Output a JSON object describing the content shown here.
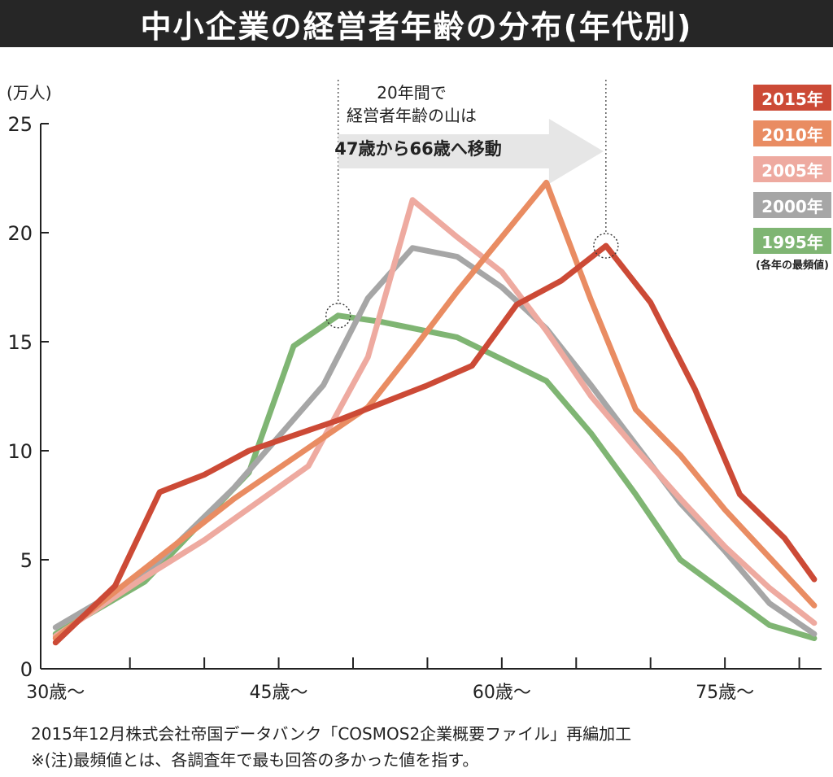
{
  "title": "中小企業の経営者年齢の分布(年代別)",
  "unit_label": "(万人)",
  "annotation": {
    "line1": "20年間で",
    "line2": "経営者年齢の山は",
    "arrow_text": "47歳から66歳へ移動"
  },
  "legend_note": "(各年の最頻値)",
  "source_line1": "2015年12月株式会社帝国データバンク「COSMOS2企業概要ファイル」再編加工",
  "source_line2": "※(注)最頻値とは、各調査年で最も回答の多かった値を指す。",
  "chart_data": {
    "type": "line",
    "x": [
      30,
      33,
      36,
      39,
      42,
      45,
      48,
      51,
      54,
      57,
      60,
      63,
      66,
      69,
      72,
      75,
      78,
      81
    ],
    "x_tick_labels": [
      "30歳〜",
      "45歳〜",
      "60歳〜",
      "75歳〜"
    ],
    "x_tick_values": [
      30,
      45,
      60,
      75
    ],
    "y_ticks": [
      0,
      5,
      10,
      15,
      20,
      25
    ],
    "ylim": [
      0,
      25
    ],
    "xlim": [
      29,
      81.5
    ],
    "series": [
      {
        "name": "1995年",
        "color": "#7fb573",
        "x": [
          30,
          36,
          43,
          46,
          49,
          52,
          57,
          63,
          66,
          69,
          72,
          75,
          78,
          81
        ],
        "values": [
          1.6,
          4.0,
          9.0,
          14.8,
          16.2,
          15.9,
          15.2,
          13.2,
          10.8,
          8.0,
          5.0,
          3.5,
          2.0,
          1.4
        ]
      },
      {
        "name": "2000年",
        "color": "#a6a6a6",
        "x": [
          30,
          36,
          42,
          48,
          51,
          54,
          57,
          60,
          63,
          66,
          69,
          72,
          75,
          78,
          81
        ],
        "values": [
          1.9,
          4.3,
          8.3,
          13.0,
          17.0,
          19.3,
          18.9,
          17.5,
          15.6,
          13.0,
          10.3,
          7.6,
          5.4,
          3.0,
          1.6
        ]
      },
      {
        "name": "2005年",
        "color": "#eeaaa0",
        "x": [
          30,
          36,
          40,
          47,
          51,
          54,
          57,
          60,
          63,
          66,
          69,
          72,
          75,
          78,
          81
        ],
        "values": [
          1.5,
          4.2,
          5.9,
          9.3,
          14.3,
          21.5,
          19.8,
          18.2,
          15.5,
          12.5,
          10.1,
          7.8,
          5.6,
          3.7,
          2.1
        ]
      },
      {
        "name": "2010年",
        "color": "#e98c62",
        "x": [
          30,
          36,
          42,
          48,
          51,
          54,
          57,
          60,
          63,
          66,
          69,
          72,
          75,
          78,
          81
        ],
        "values": [
          1.4,
          4.6,
          7.8,
          10.6,
          12.0,
          14.6,
          17.3,
          19.8,
          22.3,
          16.9,
          11.9,
          9.8,
          7.3,
          5.1,
          2.9
        ]
      },
      {
        "name": "2015年",
        "color": "#cc4a36",
        "x": [
          30,
          34,
          37,
          40,
          43,
          46,
          49,
          52,
          55,
          58,
          61,
          64,
          67,
          70,
          73,
          76,
          79,
          81
        ],
        "values": [
          1.2,
          3.8,
          8.1,
          8.9,
          10.0,
          10.7,
          11.4,
          12.2,
          13.0,
          13.9,
          16.7,
          17.8,
          19.4,
          16.8,
          12.8,
          8.0,
          6.0,
          4.1
        ]
      }
    ],
    "peak_markers": [
      {
        "series": "1995年",
        "x": 49,
        "y": 16.2
      },
      {
        "series": "2015年",
        "x": 67,
        "y": 19.4
      }
    ]
  }
}
